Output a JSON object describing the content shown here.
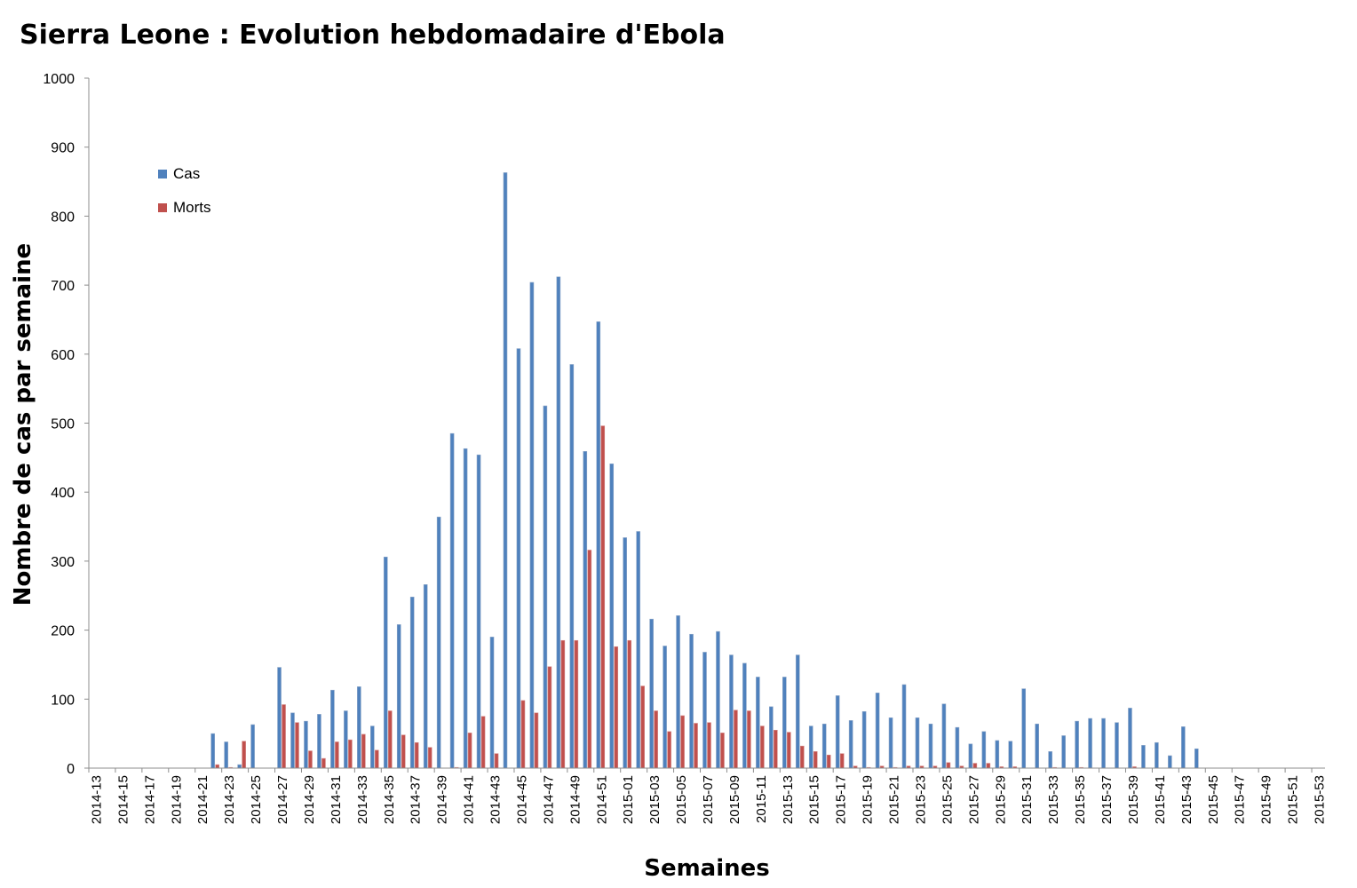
{
  "chart_data": {
    "type": "bar",
    "title": "Sierra Leone : Evolution hebdomadaire d'Ebola",
    "xlabel": "Semaines",
    "ylabel": "Nombre de cas par semaine",
    "ylim": [
      0,
      1000
    ],
    "yticks": [
      0,
      100,
      200,
      300,
      400,
      500,
      600,
      700,
      800,
      900,
      1000
    ],
    "grid": false,
    "legend": "top-left",
    "categories": [
      "2014-13",
      "2014-14",
      "2014-15",
      "2014-16",
      "2014-17",
      "2014-18",
      "2014-19",
      "2014-20",
      "2014-21",
      "2014-22",
      "2014-23",
      "2014-24",
      "2014-25",
      "2014-26",
      "2014-27",
      "2014-28",
      "2014-29",
      "2014-30",
      "2014-31",
      "2014-32",
      "2014-33",
      "2014-34",
      "2014-35",
      "2014-36",
      "2014-37",
      "2014-38",
      "2014-39",
      "2014-40",
      "2014-41",
      "2014-42",
      "2014-43",
      "2014-44",
      "2014-45",
      "2014-46",
      "2014-47",
      "2014-48",
      "2014-49",
      "2014-50",
      "2014-51",
      "2014-52",
      "2015-01",
      "2015-02",
      "2015-03",
      "2015-04",
      "2015-05",
      "2015-06",
      "2015-07",
      "2015-08",
      "2015-09",
      "2015-10",
      "2015-11",
      "2015-12",
      "2015-13",
      "2015-14",
      "2015-15",
      "2015-16",
      "2015-17",
      "2015-18",
      "2015-19",
      "2015-20",
      "2015-21",
      "2015-22",
      "2015-23",
      "2015-24",
      "2015-25",
      "2015-26",
      "2015-27",
      "2015-28",
      "2015-29",
      "2015-30",
      "2015-31",
      "2015-32",
      "2015-33",
      "2015-34",
      "2015-35",
      "2015-36",
      "2015-37",
      "2015-38",
      "2015-39",
      "2015-40",
      "2015-41",
      "2015-42",
      "2015-43",
      "2015-44",
      "2015-45",
      "2015-46",
      "2015-47",
      "2015-48",
      "2015-49",
      "2015-50",
      "2015-51",
      "2015-52",
      "2015-53"
    ],
    "tick_labels": [
      "2014-13",
      "2014-15",
      "2014-17",
      "2014-19",
      "2014-21",
      "2014-23",
      "2014-25",
      "2014-27",
      "2014-29",
      "2014-31",
      "2014-33",
      "2014-35",
      "2014-37",
      "2014-39",
      "2014-41",
      "2014-43",
      "2014-45",
      "2014-47",
      "2014-49",
      "2014-51",
      "2015-01",
      "2015-03",
      "2015-05",
      "2015-07",
      "2015-09",
      "2015-11",
      "2015-13",
      "2015-15",
      "2015-17",
      "2015-19",
      "2015-21",
      "2015-23",
      "2015-25",
      "2015-27",
      "2015-29",
      "2015-31",
      "2015-33",
      "2015-35",
      "2015-37",
      "2015-39",
      "2015-41",
      "2015-43",
      "2015-45",
      "2015-47",
      "2015-49",
      "2015-51",
      "2015-53"
    ],
    "series": [
      {
        "name": "Cas",
        "color": "#4f81bd",
        "values": [
          0,
          0,
          0,
          0,
          0,
          0,
          0,
          0,
          0,
          50,
          38,
          5,
          63,
          0,
          146,
          80,
          68,
          78,
          113,
          83,
          118,
          61,
          306,
          208,
          248,
          266,
          364,
          485,
          463,
          454,
          190,
          863,
          608,
          704,
          525,
          712,
          585,
          459,
          647,
          441,
          334,
          343,
          216,
          177,
          221,
          194,
          168,
          198,
          164,
          152,
          132,
          89,
          132,
          164,
          61,
          64,
          105,
          69,
          82,
          109,
          73,
          121,
          73,
          64,
          93,
          59,
          35,
          53,
          40,
          39,
          115,
          64,
          24,
          47,
          68,
          72,
          72,
          66,
          87,
          33,
          37,
          18,
          60,
          28,
          0,
          0,
          0,
          0,
          0,
          0,
          0,
          0,
          0
        ]
      },
      {
        "name": "Morts",
        "color": "#c0504d",
        "values": [
          0,
          0,
          0,
          0,
          0,
          0,
          0,
          0,
          0,
          5,
          1,
          39,
          0,
          0,
          92,
          66,
          25,
          14,
          38,
          41,
          49,
          26,
          83,
          48,
          37,
          30,
          0,
          1,
          51,
          75,
          21,
          0,
          98,
          80,
          147,
          185,
          185,
          316,
          496,
          176,
          185,
          119,
          83,
          53,
          76,
          65,
          66,
          51,
          84,
          83,
          61,
          55,
          52,
          32,
          24,
          19,
          21,
          3,
          1,
          3,
          1,
          3,
          3,
          3,
          8,
          3,
          7,
          7,
          2,
          2,
          0,
          0,
          1,
          0,
          1,
          0,
          0,
          0,
          2,
          0,
          0,
          0,
          0,
          0,
          0,
          0,
          0,
          0,
          0,
          0,
          0,
          0,
          0
        ]
      }
    ]
  }
}
